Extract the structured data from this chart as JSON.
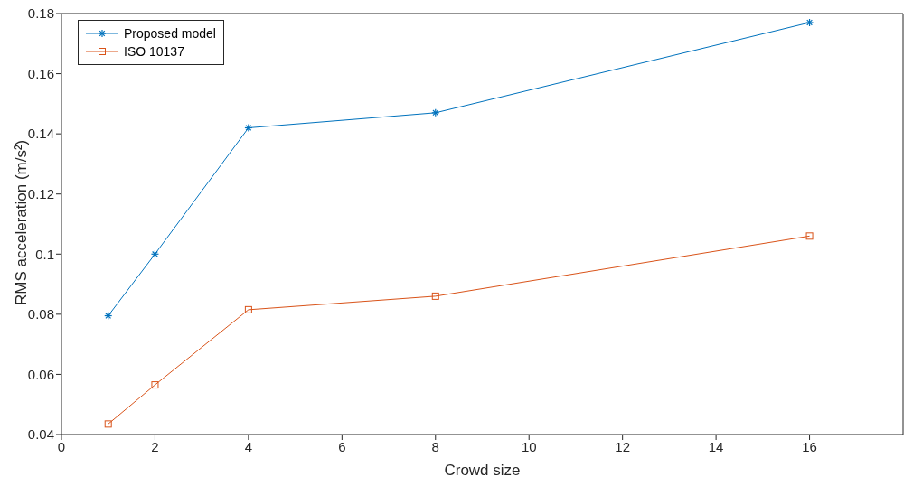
{
  "chart_data": {
    "type": "line",
    "xlabel": "Crowd size",
    "ylabel": "RMS acceleration (m/s²)",
    "xlim": [
      0,
      18
    ],
    "xticks": [
      0,
      2,
      4,
      6,
      8,
      10,
      12,
      14,
      16
    ],
    "ylim": [
      0.04,
      0.18
    ],
    "yticks": [
      0.04,
      0.06,
      0.08,
      0.1,
      0.12,
      0.14,
      0.16,
      0.18
    ],
    "grid": false,
    "legend": "top left",
    "x": [
      1,
      2,
      4,
      8,
      16
    ],
    "series": [
      {
        "name": "Proposed model",
        "color": "#0072bd",
        "marker": "cross",
        "values": [
          0.0795,
          0.1,
          0.142,
          0.147,
          0.177
        ]
      },
      {
        "name": "ISO 10137",
        "color": "#d95319",
        "marker": "square",
        "values": [
          0.0435,
          0.0565,
          0.0815,
          0.086,
          0.106
        ]
      }
    ]
  }
}
